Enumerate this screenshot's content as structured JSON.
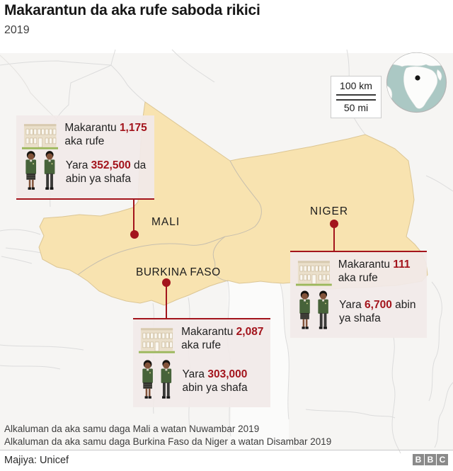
{
  "header": {
    "title": "Makarantun da aka rufe saboda rikici",
    "subtitle": "2019"
  },
  "map": {
    "countries": [
      {
        "label": "MALI"
      },
      {
        "label": "NIGER"
      },
      {
        "label": "BURKINA FASO"
      }
    ],
    "scale": {
      "km": "100 km",
      "mi": "50 mi"
    },
    "colors": {
      "region": "#f8e3b0",
      "accent": "#a3141c",
      "globe_ocean": "#abc8c4",
      "callout_bg": "#f1e9e8"
    }
  },
  "callouts": [
    {
      "country": "Mali",
      "schools_closed": "1,175",
      "children_affected": "352,500",
      "school_parts": [
        {
          "t": "Makarantu "
        },
        {
          "t": "1,175",
          "em": true
        },
        {
          "t": " aka rufe"
        }
      ],
      "children_parts": [
        {
          "t": "Yara "
        },
        {
          "t": "352,500",
          "em": true
        },
        {
          "t": " da abin ya shafa"
        }
      ]
    },
    {
      "country": "Niger",
      "schools_closed": "111",
      "children_affected": "6,700",
      "school_parts": [
        {
          "t": "Makarantu "
        },
        {
          "t": "111",
          "em": true
        },
        {
          "t": " aka rufe"
        }
      ],
      "children_parts": [
        {
          "t": "Yara "
        },
        {
          "t": "6,700",
          "em": true
        },
        {
          "t": " abin ya shafa"
        }
      ]
    },
    {
      "country": "Burkina Faso",
      "schools_closed": "2,087",
      "children_affected": "303,000",
      "school_parts": [
        {
          "t": "Makarantu "
        },
        {
          "t": "2,087",
          "em": true
        },
        {
          "t": " aka rufe"
        }
      ],
      "children_parts": [
        {
          "t": "Yara "
        },
        {
          "t": "303,000",
          "em": true
        },
        {
          "t": " abin ya shafa"
        }
      ]
    }
  ],
  "footnotes": [
    "Alkaluman da aka samu daga Mali a watan Nuwambar 2019",
    "Alkaluman da aka samu daga Burkina Faso da Niger a watan Disambar 2019"
  ],
  "source": "Majiya: Unicef",
  "logo_letters": [
    "B",
    "B",
    "C"
  ]
}
